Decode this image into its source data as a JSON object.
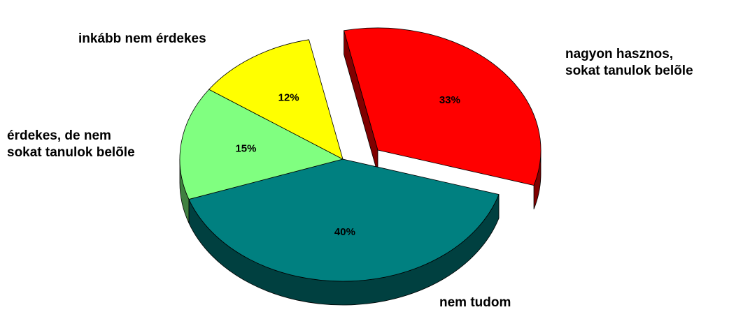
{
  "chart_data": {
    "type": "pie",
    "categories": [
      "nagyon hasznos,\nsokat tanulok belõle",
      "nem tudom",
      "érdekes, de nem\nsokat tanulok belõle",
      "inkább nem érdekes"
    ],
    "values": [
      33,
      40,
      15,
      12
    ],
    "value_labels": [
      "33%",
      "40%",
      "15%",
      "12%"
    ],
    "colors": [
      "#ff0000",
      "#008080",
      "#80ff80",
      "#ffff00"
    ],
    "explode": [
      true,
      false,
      false,
      false
    ],
    "three_d": true
  }
}
